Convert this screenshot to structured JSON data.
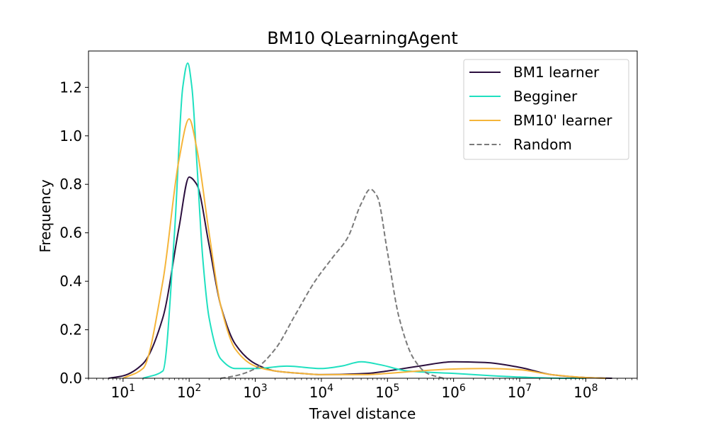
{
  "chart_data": {
    "type": "line",
    "title": "BM10 QLearningAgent",
    "xlabel": "Travel distance",
    "ylabel": "Frequency",
    "xscale": "log",
    "xlim": [
      3,
      600000000
    ],
    "ylim": [
      0,
      1.35
    ],
    "x_ticks": [
      {
        "base": "10",
        "exp": "1",
        "value": 10
      },
      {
        "base": "10",
        "exp": "2",
        "value": 100
      },
      {
        "base": "10",
        "exp": "3",
        "value": 1000
      },
      {
        "base": "10",
        "exp": "4",
        "value": 10000
      },
      {
        "base": "10",
        "exp": "5",
        "value": 100000
      },
      {
        "base": "10",
        "exp": "6",
        "value": 1000000
      },
      {
        "base": "10",
        "exp": "7",
        "value": 10000000
      },
      {
        "base": "10",
        "exp": "8",
        "value": 100000000
      }
    ],
    "y_ticks": [
      {
        "label": "0.0",
        "value": 0.0
      },
      {
        "label": "0.2",
        "value": 0.2
      },
      {
        "label": "0.4",
        "value": 0.4
      },
      {
        "label": "0.6",
        "value": 0.6
      },
      {
        "label": "0.8",
        "value": 0.8
      },
      {
        "label": "1.0",
        "value": 1.0
      },
      {
        "label": "1.2",
        "value": 1.2
      }
    ],
    "grid": false,
    "legend_position": "top-right",
    "series": [
      {
        "name": "BM1 learner",
        "color": "#2b0f3e",
        "dash": "solid",
        "x": [
          6,
          10,
          20,
          40,
          70,
          100,
          130,
          200,
          300,
          500,
          1000,
          2000,
          5000,
          10000,
          50000,
          100000,
          300000,
          1000000,
          3000000,
          10000000,
          30000000,
          100000000,
          250000000
        ],
        "y": [
          0.0,
          0.01,
          0.06,
          0.25,
          0.62,
          0.83,
          0.8,
          0.55,
          0.3,
          0.14,
          0.06,
          0.03,
          0.02,
          0.015,
          0.02,
          0.03,
          0.05,
          0.068,
          0.065,
          0.045,
          0.015,
          0.003,
          0.0
        ]
      },
      {
        "name": "Begginer",
        "color": "#1fe0c0",
        "dash": "solid",
        "x": [
          20,
          40,
          60,
          80,
          95,
          110,
          130,
          160,
          200,
          300,
          500,
          1000,
          3000,
          10000,
          20000,
          40000,
          80000,
          200000,
          1000000,
          3000000,
          10000000,
          50000000,
          100000000
        ],
        "y": [
          0.0,
          0.03,
          0.6,
          1.2,
          1.3,
          1.2,
          0.9,
          0.5,
          0.25,
          0.08,
          0.04,
          0.04,
          0.05,
          0.04,
          0.05,
          0.068,
          0.055,
          0.03,
          0.02,
          0.012,
          0.005,
          0.0,
          0.0
        ]
      },
      {
        "name": "BM10' learner",
        "color": "#f5b53a",
        "dash": "solid",
        "x": [
          10,
          20,
          40,
          70,
          100,
          130,
          200,
          300,
          500,
          1000,
          2000,
          5000,
          10000,
          50000,
          100000,
          300000,
          1000000,
          3000000,
          10000000,
          30000000,
          100000000,
          200000000
        ],
        "y": [
          0.0,
          0.04,
          0.4,
          0.9,
          1.07,
          0.95,
          0.6,
          0.3,
          0.12,
          0.05,
          0.03,
          0.02,
          0.015,
          0.015,
          0.02,
          0.03,
          0.038,
          0.04,
          0.035,
          0.015,
          0.003,
          0.0
        ]
      },
      {
        "name": "Random",
        "color": "#7a7a7a",
        "dash": "dashed",
        "x": [
          300,
          500,
          1000,
          2000,
          4000,
          8000,
          15000,
          25000,
          40000,
          55000,
          70000,
          100000,
          150000,
          250000,
          400000,
          700000
        ],
        "y": [
          0.0,
          0.01,
          0.04,
          0.12,
          0.26,
          0.4,
          0.5,
          0.58,
          0.72,
          0.78,
          0.75,
          0.52,
          0.25,
          0.08,
          0.02,
          0.0
        ]
      }
    ]
  }
}
